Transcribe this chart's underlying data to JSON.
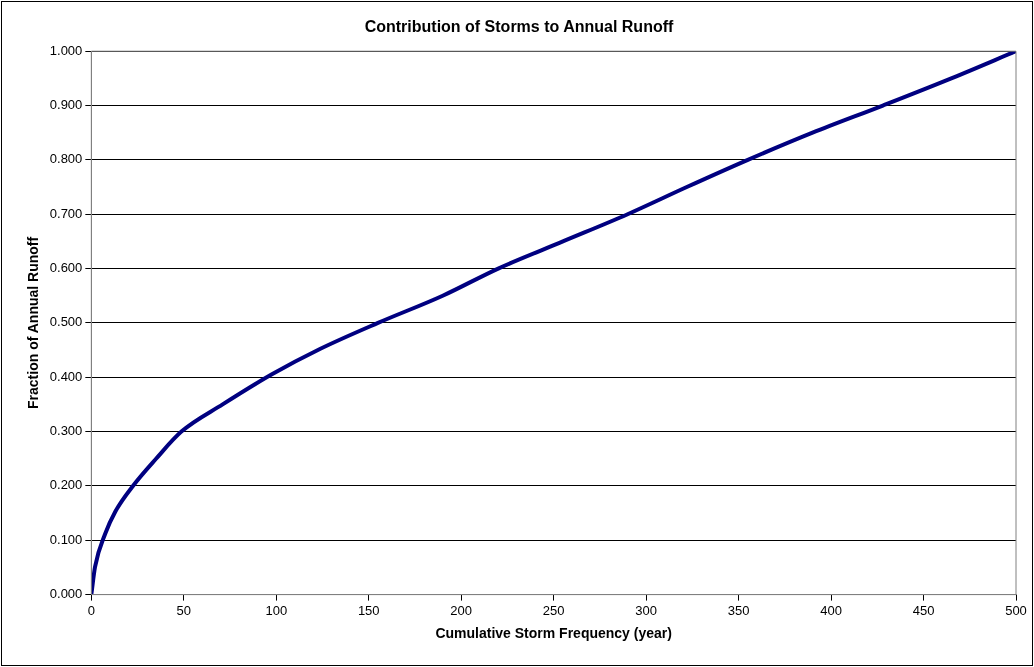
{
  "chart_data": {
    "type": "line",
    "title": "Contribution of Storms to Annual Runoff",
    "xlabel": "Cumulative Storm Frequency (year)",
    "ylabel": "Fraction of Annual Runoff",
    "xlim": [
      0,
      500
    ],
    "xticks": [
      0,
      50,
      100,
      150,
      200,
      250,
      300,
      350,
      400,
      450,
      500
    ],
    "ylim": [
      0,
      1
    ],
    "yticks": [
      {
        "value": 0,
        "label": "0.000"
      },
      {
        "value": 0.1,
        "label": "0.100"
      },
      {
        "value": 0.2,
        "label": "0.200"
      },
      {
        "value": 0.3,
        "label": "0.300"
      },
      {
        "value": 0.4,
        "label": "0.400"
      },
      {
        "value": 0.5,
        "label": "0.500"
      },
      {
        "value": 0.6,
        "label": "0.600"
      },
      {
        "value": 0.7,
        "label": "0.700"
      },
      {
        "value": 0.8,
        "label": "0.800"
      },
      {
        "value": 0.9,
        "label": "0.900"
      },
      {
        "value": 1,
        "label": "1.000"
      }
    ],
    "grid": "y",
    "legend": false,
    "marker": "none",
    "line_style": "solid",
    "series": [
      {
        "color": "#000080",
        "x": [
          0,
          2,
          7.5,
          13,
          22.5,
          35,
          48.7,
          71,
          97.4,
          123.6,
          155,
          190,
          220,
          255,
          290,
          322,
          355,
          390,
          428,
          465,
          500
        ],
        "values": [
          0,
          0.051,
          0.112,
          0.153,
          0.2,
          0.25,
          0.3,
          0.35,
          0.405,
          0.452,
          0.5,
          0.55,
          0.6,
          0.65,
          0.7,
          0.75,
          0.8,
          0.85,
          0.9,
          0.95,
          1
        ]
      }
    ]
  }
}
